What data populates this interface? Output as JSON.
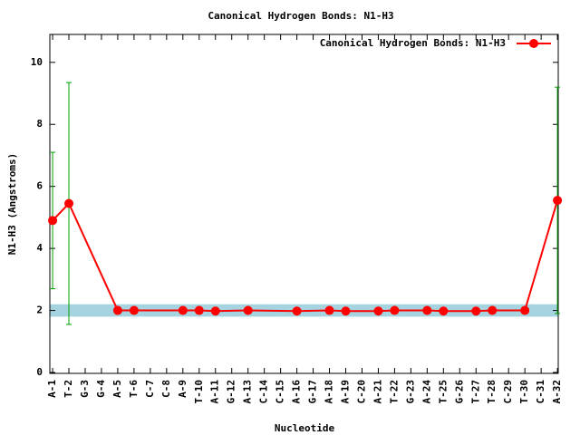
{
  "chart_data": {
    "type": "line",
    "title": "Canonical Hydrogen Bonds: N1-H3",
    "x_label": "Nucleotide",
    "y_label": "N1-H3 (Angstroms)",
    "xlim": [
      0.83,
      32.05
    ],
    "ylim": [
      0,
      10.9
    ],
    "yticks": [
      0,
      2,
      4,
      6,
      8,
      10
    ],
    "xticks": [
      {
        "value": 1,
        "label": "A-1"
      },
      {
        "value": 2,
        "label": "T-2"
      },
      {
        "value": 3,
        "label": "G-3"
      },
      {
        "value": 4,
        "label": "G-4"
      },
      {
        "value": 5,
        "label": "A-5"
      },
      {
        "value": 6,
        "label": "T-6"
      },
      {
        "value": 7,
        "label": "C-7"
      },
      {
        "value": 8,
        "label": "C-8"
      },
      {
        "value": 9,
        "label": "A-9"
      },
      {
        "value": 10,
        "label": "T-10"
      },
      {
        "value": 11,
        "label": "A-11"
      },
      {
        "value": 12,
        "label": "G-12"
      },
      {
        "value": 13,
        "label": "A-13"
      },
      {
        "value": 14,
        "label": "C-14"
      },
      {
        "value": 15,
        "label": "C-15"
      },
      {
        "value": 16,
        "label": "A-16"
      },
      {
        "value": 17,
        "label": "G-17"
      },
      {
        "value": 18,
        "label": "A-18"
      },
      {
        "value": 19,
        "label": "A-19"
      },
      {
        "value": 20,
        "label": "C-20"
      },
      {
        "value": 21,
        "label": "A-21"
      },
      {
        "value": 22,
        "label": "T-22"
      },
      {
        "value": 23,
        "label": "G-23"
      },
      {
        "value": 24,
        "label": "A-24"
      },
      {
        "value": 25,
        "label": "T-25"
      },
      {
        "value": 26,
        "label": "G-26"
      },
      {
        "value": 27,
        "label": "T-27"
      },
      {
        "value": 28,
        "label": "T-28"
      },
      {
        "value": 29,
        "label": "C-29"
      },
      {
        "value": 30,
        "label": "T-30"
      },
      {
        "value": 31,
        "label": "C-31"
      },
      {
        "value": 32,
        "label": "A-32"
      }
    ],
    "band": [
      1.8,
      2.2
    ],
    "band_color": "#a6d3e0",
    "legend_position": "upper right",
    "series": [
      {
        "name": "Canonical Hydrogen Bonds: N1-H3",
        "color": "#ff0000",
        "error_color": "#00a000",
        "x": [
          1,
          2,
          5,
          6,
          9,
          10,
          11,
          13,
          16,
          18,
          19,
          21,
          22,
          24,
          25,
          27,
          28,
          30,
          32
        ],
        "values": [
          4.9,
          5.45,
          2.0,
          2.0,
          2.0,
          2.0,
          1.98,
          2.0,
          1.98,
          2.0,
          1.98,
          1.98,
          2.0,
          2.0,
          1.98,
          1.98,
          2.0,
          2.0,
          5.55
        ],
        "errors": [
          2.2,
          3.9,
          0,
          0,
          0,
          0,
          0,
          0,
          0,
          0,
          0,
          0,
          0,
          0,
          0,
          0,
          0,
          0,
          3.65
        ]
      }
    ]
  }
}
